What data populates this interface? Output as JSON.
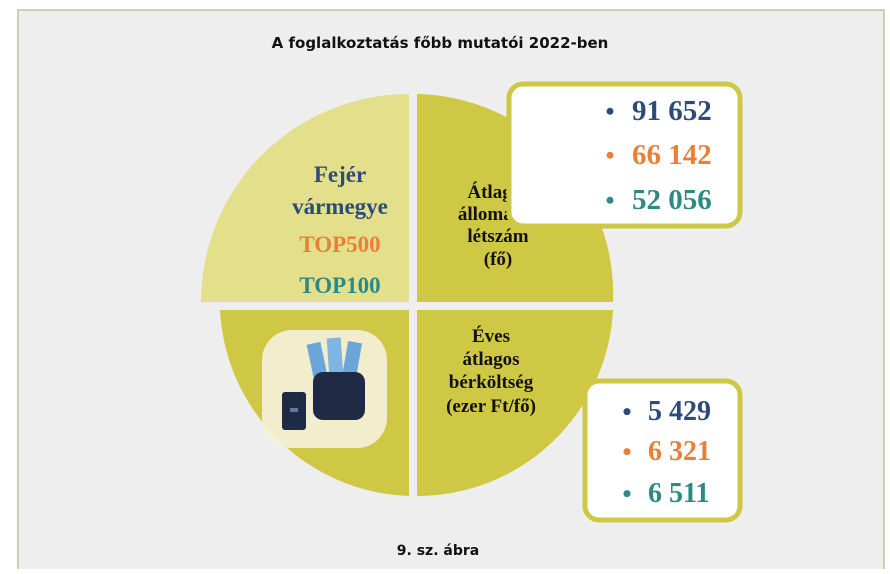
{
  "title": "A foglalkoztatás főbb mutatói 2022-ben",
  "quadrants": {
    "top_left": {
      "lines": [
        "Fejér",
        "vármegye",
        "TOP500",
        "TOP100"
      ]
    },
    "top_right": {
      "lines": [
        "Átlagos",
        "állományi",
        "létszám",
        "(fő)"
      ]
    },
    "bottom_right": {
      "lines": [
        "Éves",
        "átlagos",
        "bérköltség",
        "(ezer Ft/fő)"
      ]
    }
  },
  "headcount_box": {
    "items": [
      "91 652",
      "66 142",
      "52 056"
    ]
  },
  "wage_box": {
    "items": [
      "5 429",
      "6 321",
      "6 511"
    ]
  },
  "caption": "9. sz. ábra"
}
